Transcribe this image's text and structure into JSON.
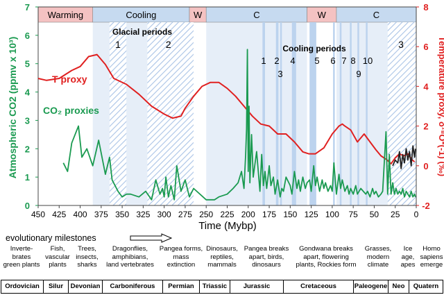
{
  "chart_data": {
    "type": "line",
    "x_axis": {
      "label": "Time (Mybp)",
      "range": [
        450,
        0
      ],
      "ticks": [
        450,
        425,
        400,
        375,
        350,
        325,
        300,
        275,
        250,
        225,
        200,
        175,
        150,
        125,
        100,
        75,
        50,
        25,
        0
      ]
    },
    "y_left": {
      "label": "Atmospheric CO2 (ppmv x 10³)",
      "range": [
        0,
        7
      ],
      "ticks": [
        0,
        1,
        2,
        3,
        4,
        5,
        6,
        7
      ]
    },
    "y_right": {
      "label": "Temperature proxy, δ¹⁸O*(-1) (‰)",
      "range": [
        -2,
        8
      ],
      "ticks": [
        -2,
        0,
        2,
        4,
        6,
        8
      ]
    },
    "climate_bands": [
      {
        "label": "Warming",
        "start": 450,
        "end": 385,
        "color": "#f4c2c2"
      },
      {
        "label": "Cooling",
        "start": 385,
        "end": 270,
        "color": "#c6daf0"
      },
      {
        "label": "W",
        "start": 270,
        "end": 250,
        "color": "#f4c2c2"
      },
      {
        "label": "C",
        "start": 250,
        "end": 130,
        "color": "#c6daf0"
      },
      {
        "label": "W",
        "start": 130,
        "end": 95,
        "color": "#f4c2c2"
      },
      {
        "label": "C",
        "start": 95,
        "end": 0,
        "color": "#c6daf0"
      }
    ],
    "glacial_header": "Glacial periods",
    "glacial_periods": [
      {
        "label": "1",
        "start": 365,
        "end": 345
      },
      {
        "label": "2",
        "start": 320,
        "end": 265
      },
      {
        "label": "3",
        "start": 34,
        "end": 0
      }
    ],
    "cooling_header": "Cooling periods",
    "cooling_periods": [
      {
        "label": "1",
        "start": 183,
        "end": 180
      },
      {
        "label": "2",
        "start": 167,
        "end": 164
      },
      {
        "label": "3",
        "start": 162,
        "end": 160
      },
      {
        "label": "4",
        "start": 148,
        "end": 143
      },
      {
        "label": "5",
        "start": 127,
        "end": 119
      },
      {
        "label": "6",
        "start": 99,
        "end": 97
      },
      {
        "label": "7",
        "start": 91,
        "end": 89
      },
      {
        "label": "8",
        "start": 79,
        "end": 78
      },
      {
        "label": "9",
        "start": 70,
        "end": 68
      },
      {
        "label": "10",
        "start": 60,
        "end": 59
      }
    ],
    "series": [
      {
        "name": "T proxy",
        "axis": "right",
        "color": "#e02020",
        "x": [
          450,
          440,
          425,
          410,
          400,
          390,
          380,
          370,
          360,
          345,
          330,
          315,
          300,
          290,
          280,
          275,
          265,
          255,
          245,
          235,
          225,
          215,
          205,
          195,
          185,
          175,
          165,
          155,
          145,
          135,
          128,
          120,
          110,
          100,
          92,
          88,
          85,
          78,
          70,
          62,
          55,
          48,
          42,
          35,
          30,
          25,
          20,
          15,
          10,
          5,
          2
        ],
        "y": [
          4.4,
          4.3,
          4.4,
          4.8,
          5.0,
          5.5,
          5.6,
          5.1,
          4.4,
          4.1,
          3.6,
          3.0,
          2.6,
          2.4,
          2.5,
          2.9,
          3.5,
          4.0,
          4.2,
          4.2,
          3.9,
          3.5,
          3.0,
          2.5,
          2.1,
          2.0,
          1.6,
          1.6,
          1.2,
          0.7,
          0.6,
          0.6,
          0.9,
          1.6,
          2.0,
          2.1,
          2.0,
          1.8,
          1.2,
          1.6,
          1.2,
          0.8,
          0.5,
          0.3,
          0.1,
          0.4,
          0.6,
          0.5,
          0.6,
          0.3,
          0.2
        ]
      },
      {
        "name": "CO₂ proxies",
        "axis": "left",
        "color": "#1a9a50",
        "x": [
          420,
          415,
          410,
          402,
          398,
          392,
          385,
          378,
          370,
          365,
          362,
          355,
          350,
          345,
          340,
          330,
          322,
          315,
          310,
          305,
          302,
          300,
          298,
          295,
          292,
          288,
          285,
          280,
          275,
          270,
          265,
          250,
          240,
          235,
          225,
          218,
          212,
          208,
          205,
          203,
          202,
          201,
          200,
          199,
          198,
          196,
          194,
          190,
          188,
          186,
          184,
          182,
          180,
          178,
          175,
          173,
          170,
          168,
          165,
          162,
          160,
          158,
          155,
          150,
          148,
          145,
          142,
          140,
          138,
          135,
          132,
          130,
          127,
          125,
          122,
          120,
          118,
          115,
          112,
          110,
          108,
          105,
          102,
          100,
          98,
          95,
          92,
          90,
          88,
          85,
          82,
          80,
          78,
          75,
          72,
          70,
          66,
          63,
          60,
          58,
          55,
          52,
          50,
          48,
          45,
          42,
          40,
          36,
          34,
          32,
          30,
          28,
          26,
          24,
          22,
          20,
          18,
          16,
          14,
          12,
          10,
          8,
          6,
          4,
          2,
          1
        ],
        "y": [
          1.5,
          1.2,
          2.2,
          2.8,
          1.7,
          2.0,
          1.4,
          2.3,
          1.1,
          1.7,
          0.9,
          0.5,
          0.3,
          0.4,
          0.4,
          0.3,
          0.5,
          0.2,
          0.9,
          0.4,
          0.6,
          0.3,
          1.0,
          0.3,
          0.7,
          0.2,
          1.4,
          0.5,
          0.9,
          0.3,
          0.6,
          0.2,
          0.2,
          0.3,
          0.4,
          0.6,
          0.8,
          1.2,
          0.6,
          1.8,
          2.7,
          5.5,
          1.2,
          3.5,
          0.8,
          2.5,
          1.0,
          1.9,
          1.2,
          0.5,
          1.8,
          0.7,
          1.2,
          0.6,
          1.4,
          0.7,
          1.0,
          0.4,
          0.9,
          0.3,
          0.6,
          0.5,
          1.0,
          0.7,
          0.4,
          1.2,
          0.6,
          0.9,
          0.5,
          1.0,
          0.6,
          0.8,
          0.9,
          0.5,
          1.4,
          0.7,
          1.0,
          0.5,
          0.9,
          0.6,
          0.8,
          0.5,
          0.7,
          0.5,
          1.5,
          0.4,
          1.1,
          0.6,
          0.9,
          0.5,
          0.7,
          0.4,
          0.6,
          0.4,
          0.7,
          0.4,
          0.6,
          0.5,
          0.4,
          0.5,
          0.3,
          0.6,
          0.4,
          0.5,
          0.3,
          0.4,
          0.5,
          2.6,
          0.4,
          1.8,
          0.4,
          0.8,
          0.4,
          0.6,
          0.4,
          0.5,
          0.4,
          0.6,
          0.3,
          0.5,
          0.4,
          0.3,
          0.5,
          0.3,
          0.4,
          0.3
        ]
      },
      {
        "name": "CO2 recent",
        "axis": "left",
        "color": "#222222",
        "x": [
          28,
          25,
          22,
          20,
          18,
          16,
          14,
          12,
          10,
          8,
          6,
          4,
          2,
          1
        ],
        "y": [
          1.4,
          1.6,
          1.5,
          1.9,
          1.3,
          1.8,
          1.5,
          2.0,
          1.6,
          1.9,
          1.4,
          2.1,
          1.7,
          2.0
        ]
      }
    ],
    "labels": {
      "t_proxy": "T proxy",
      "co2_proxies": "CO₂ proxies"
    }
  },
  "milestones": {
    "title": "evolutionary milestones",
    "items": [
      {
        "text": [
          "Inverte-",
          "brates",
          "green plants"
        ]
      },
      {
        "text": [
          "Fish,",
          "vascular",
          "plants"
        ]
      },
      {
        "text": [
          "Trees,",
          "insects,",
          "sharks"
        ]
      },
      {
        "text": [
          "Dragonflies,",
          "amphibians,",
          "land vertebrates"
        ]
      },
      {
        "text": [
          "Pangea forms,",
          "mass",
          "extinction"
        ]
      },
      {
        "text": [
          "Dinosaurs,",
          "reptiles,",
          "mammals"
        ]
      },
      {
        "text": [
          "Pangea breaks",
          "apart, birds,",
          "dinosaurs"
        ]
      },
      {
        "text": [
          "Gondwana breaks",
          "apart, flowering",
          "plants, Rockies form"
        ]
      },
      {
        "text": [
          "Grasses,",
          "modern",
          "climate"
        ]
      },
      {
        "text": [
          "Ice",
          "age,",
          "apes"
        ]
      },
      {
        "text": [
          "Homo",
          "sapiens",
          "emerge"
        ]
      }
    ]
  },
  "periods": [
    "Ordovician",
    "Silur",
    "Devonian",
    "Carboniferous",
    "Permian",
    "Triassic",
    "Jurassic",
    "Cretaceous",
    "Paleogene",
    "Neo",
    "Quatern"
  ]
}
